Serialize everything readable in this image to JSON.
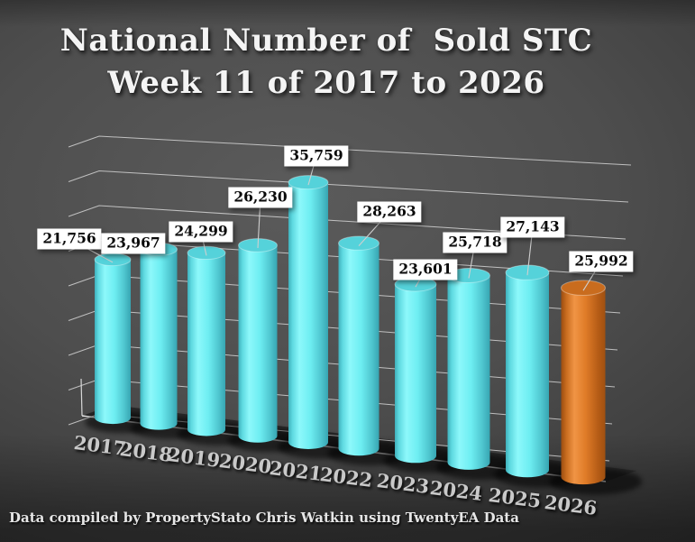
{
  "title": {
    "line1": "National Number of  Sold STC",
    "line2": "Week 11 of 2017 to 2026"
  },
  "footer": {
    "text": "Data compiled by PropertyStato Chris Watkin using TwentyEA Data"
  },
  "chart_data": {
    "type": "bar",
    "style": "3d-cylinder",
    "title": "National Number of Sold STC Week 11 of 2017 to 2026",
    "categories": [
      "2017",
      "2018",
      "2019",
      "2020",
      "2021",
      "2022",
      "2023",
      "2024",
      "2025",
      "2026"
    ],
    "values": [
      21756,
      23967,
      24299,
      26230,
      35759,
      28263,
      23601,
      25718,
      27143,
      25992
    ],
    "data_labels": [
      "21,756",
      "23,967",
      "24,299",
      "26,230",
      "35,759",
      "28,263",
      "23,601",
      "25,718",
      "27,143",
      "25,992"
    ],
    "series_color": "#5fe0e8",
    "highlight_color": "#d9781f",
    "highlight_index": 9,
    "grid": true,
    "legend": false,
    "axis_value_labels": false,
    "ylim": [
      0,
      40000
    ],
    "gridline_step": 5000,
    "xlabel": "",
    "ylabel": ""
  }
}
